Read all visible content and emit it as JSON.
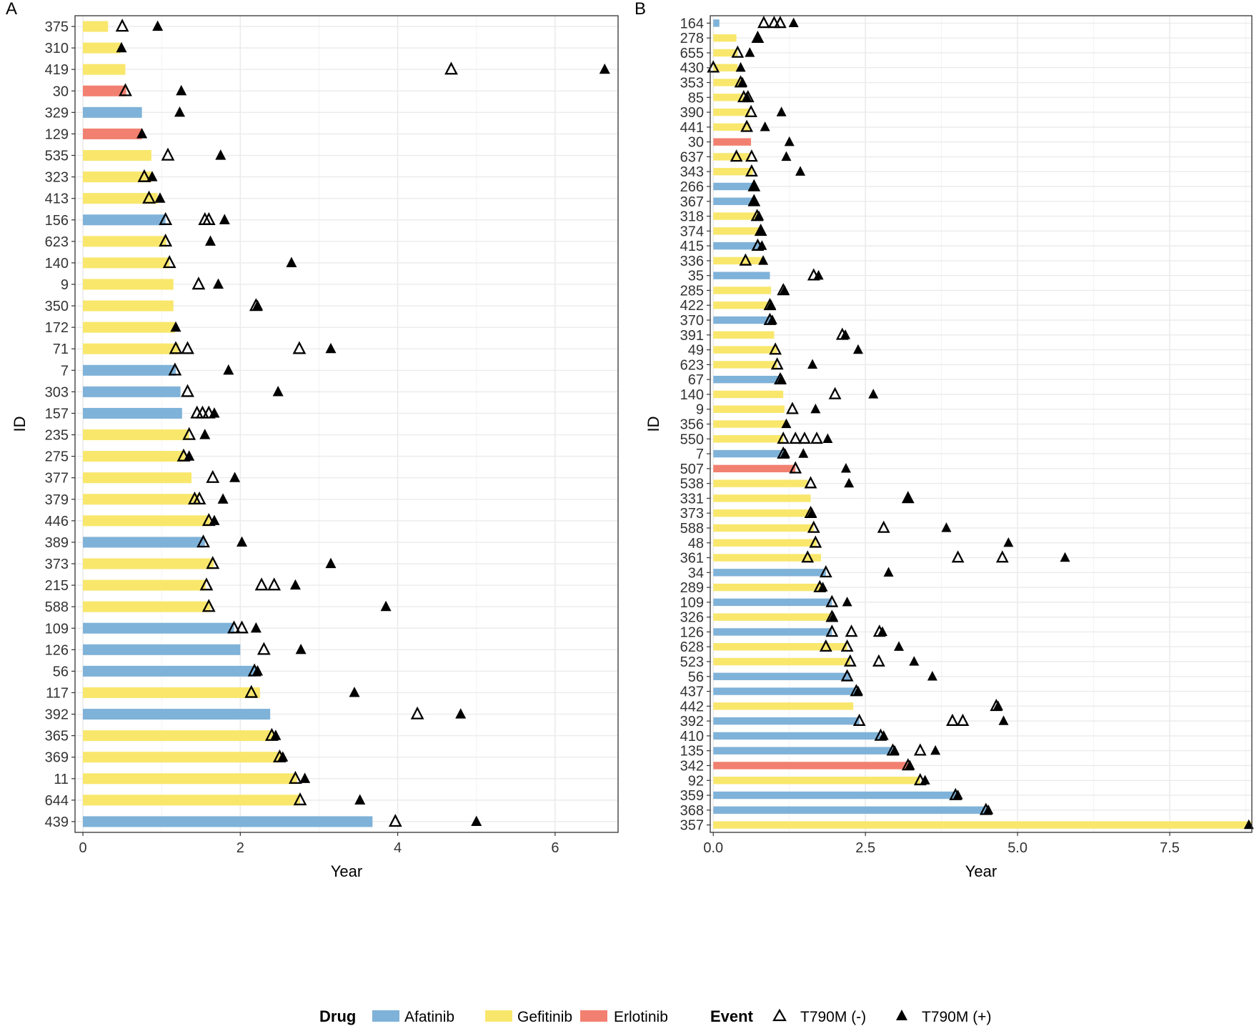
{
  "colors": {
    "Afatinib": "#7fb2d8",
    "Gefitinib": "#f9e76c",
    "Erlotinib": "#f28070",
    "grid": "#ebebeb",
    "frame": "#333333"
  },
  "legend": {
    "drug_title": "Drug",
    "drugs": [
      "Afatinib",
      "Gefitinib",
      "Erlotinib"
    ],
    "event_title": "Event",
    "events": [
      "T790M (-)",
      "T790M (+)"
    ]
  },
  "chart_data": [
    {
      "panel": "A",
      "type": "bar",
      "ylabel": "ID",
      "xlabel": "Year",
      "xlim": [
        -0.1,
        6.8
      ],
      "xticks": [
        0,
        2,
        4,
        6
      ],
      "xtick_labels": [
        "0",
        "2",
        "4",
        "6"
      ],
      "ids": [
        "375",
        "310",
        "419",
        "30",
        "329",
        "129",
        "535",
        "323",
        "413",
        "156",
        "623",
        "140",
        "9",
        "350",
        "172",
        "71",
        "7",
        "303",
        "157",
        "235",
        "275",
        "377",
        "379",
        "446",
        "389",
        "373",
        "215",
        "588",
        "109",
        "126",
        "56",
        "117",
        "392",
        "365",
        "369",
        "11",
        "644",
        "439"
      ],
      "drug": [
        "Gefitinib",
        "Gefitinib",
        "Gefitinib",
        "Erlotinib",
        "Afatinib",
        "Erlotinib",
        "Gefitinib",
        "Gefitinib",
        "Gefitinib",
        "Afatinib",
        "Gefitinib",
        "Gefitinib",
        "Gefitinib",
        "Gefitinib",
        "Gefitinib",
        "Gefitinib",
        "Afatinib",
        "Afatinib",
        "Afatinib",
        "Gefitinib",
        "Gefitinib",
        "Gefitinib",
        "Gefitinib",
        "Gefitinib",
        "Afatinib",
        "Gefitinib",
        "Gefitinib",
        "Gefitinib",
        "Afatinib",
        "Afatinib",
        "Afatinib",
        "Gefitinib",
        "Afatinib",
        "Gefitinib",
        "Gefitinib",
        "Gefitinib",
        "Gefitinib",
        "Afatinib"
      ],
      "values": [
        0.32,
        0.48,
        0.54,
        0.55,
        0.75,
        0.75,
        0.87,
        0.87,
        0.95,
        1.05,
        1.06,
        1.1,
        1.15,
        1.15,
        1.17,
        1.22,
        1.18,
        1.24,
        1.26,
        1.35,
        1.3,
        1.38,
        1.47,
        1.62,
        1.55,
        1.66,
        1.56,
        1.62,
        1.92,
        2.0,
        2.2,
        2.25,
        2.38,
        2.42,
        2.52,
        2.72,
        2.76,
        3.68
      ],
      "neg": [
        [
          0.5
        ],
        [],
        [
          4.68
        ],
        [
          0.54
        ],
        [],
        [],
        [
          1.08
        ],
        [
          0.78
        ],
        [
          0.84
        ],
        [
          1.05,
          1.55,
          1.6
        ],
        [
          1.05
        ],
        [
          1.1
        ],
        [
          1.47
        ],
        [
          2.2
        ],
        [],
        [
          1.18,
          1.33,
          2.75
        ],
        [
          1.17
        ],
        [
          1.33
        ],
        [
          1.45,
          1.52,
          1.6
        ],
        [
          1.35
        ],
        [
          1.28
        ],
        [
          1.65
        ],
        [
          1.42,
          1.48
        ],
        [
          1.6
        ],
        [
          1.53
        ],
        [
          1.65
        ],
        [
          1.57,
          2.27,
          2.43
        ],
        [
          1.6
        ],
        [
          1.92,
          2.02
        ],
        [
          2.3
        ],
        [
          2.18
        ],
        [
          2.14
        ],
        [
          4.25
        ],
        [
          2.4
        ],
        [
          2.5
        ],
        [
          2.7
        ],
        [
          2.76
        ],
        [
          3.97
        ]
      ],
      "pos": [
        [
          0.95
        ],
        [
          0.49
        ],
        [
          6.63
        ],
        [
          1.25
        ],
        [
          1.23
        ],
        [
          0.75
        ],
        [
          1.75
        ],
        [
          0.88
        ],
        [
          0.98
        ],
        [
          1.8
        ],
        [
          1.62
        ],
        [
          2.65
        ],
        [
          1.72
        ],
        [
          2.22
        ],
        [
          1.18
        ],
        [
          3.15
        ],
        [
          1.85
        ],
        [
          2.48
        ],
        [
          1.67
        ],
        [
          1.55
        ],
        [
          1.35
        ],
        [
          1.93
        ],
        [
          1.78
        ],
        [
          1.67
        ],
        [
          2.02
        ],
        [
          3.15
        ],
        [
          2.7
        ],
        [
          3.85
        ],
        [
          2.2
        ],
        [
          2.77
        ],
        [
          2.22
        ],
        [
          3.45
        ],
        [
          4.8
        ],
        [
          2.45
        ],
        [
          2.54
        ],
        [
          2.82
        ],
        [
          3.52
        ],
        [
          5.0
        ]
      ]
    },
    {
      "panel": "B",
      "type": "bar",
      "ylabel": "ID",
      "xlabel": "Year",
      "xlim": [
        -0.05,
        8.85
      ],
      "xticks": [
        0,
        2.5,
        5.0,
        7.5
      ],
      "xtick_labels": [
        "0.0",
        "2.5",
        "5.0",
        "7.5"
      ],
      "ids": [
        "164",
        "278",
        "655",
        "430",
        "353",
        "85",
        "390",
        "441",
        "30",
        "637",
        "343",
        "266",
        "367",
        "318",
        "374",
        "415",
        "336",
        "35",
        "285",
        "422",
        "370",
        "391",
        "49",
        "623",
        "67",
        "140",
        "9",
        "356",
        "550",
        "7",
        "507",
        "538",
        "331",
        "373",
        "588",
        "48",
        "361",
        "34",
        "289",
        "109",
        "326",
        "126",
        "628",
        "523",
        "56",
        "437",
        "442",
        "392",
        "410",
        "135",
        "342",
        "92",
        "359",
        "368",
        "357"
      ],
      "drug": [
        "Afatinib",
        "Gefitinib",
        "Gefitinib",
        "Gefitinib",
        "Gefitinib",
        "Gefitinib",
        "Gefitinib",
        "Gefitinib",
        "Erlotinib",
        "Gefitinib",
        "Gefitinib",
        "Afatinib",
        "Afatinib",
        "Gefitinib",
        "Gefitinib",
        "Afatinib",
        "Gefitinib",
        "Afatinib",
        "Gefitinib",
        "Gefitinib",
        "Afatinib",
        "Gefitinib",
        "Gefitinib",
        "Gefitinib",
        "Afatinib",
        "Gefitinib",
        "Gefitinib",
        "Gefitinib",
        "Gefitinib",
        "Afatinib",
        "Erlotinib",
        "Gefitinib",
        "Gefitinib",
        "Gefitinib",
        "Gefitinib",
        "Gefitinib",
        "Gefitinib",
        "Afatinib",
        "Gefitinib",
        "Afatinib",
        "Gefitinib",
        "Afatinib",
        "Gefitinib",
        "Gefitinib",
        "Afatinib",
        "Afatinib",
        "Gefitinib",
        "Afatinib",
        "Afatinib",
        "Afatinib",
        "Erlotinib",
        "Gefitinib",
        "Afatinib",
        "Afatinib",
        "Gefitinib"
      ],
      "values": [
        0.1,
        0.38,
        0.4,
        0.4,
        0.45,
        0.5,
        0.6,
        0.6,
        0.62,
        0.6,
        0.65,
        0.67,
        0.67,
        0.72,
        0.78,
        0.8,
        0.82,
        0.93,
        0.95,
        0.95,
        0.95,
        1.0,
        1.05,
        1.05,
        1.1,
        1.15,
        1.17,
        1.2,
        1.15,
        1.17,
        1.35,
        1.55,
        1.6,
        1.6,
        1.65,
        1.7,
        1.77,
        1.85,
        1.8,
        1.95,
        1.95,
        1.95,
        2.2,
        2.25,
        2.25,
        2.35,
        2.3,
        2.4,
        2.75,
        2.95,
        3.2,
        3.4,
        4.0,
        4.5,
        8.85
      ],
      "neg": [
        [
          0.83,
          1.0,
          1.1
        ],
        [
          0.73
        ],
        [
          0.4
        ],
        [
          0.0
        ],
        [
          0.45
        ],
        [
          0.5,
          0.57
        ],
        [
          0.62
        ],
        [
          0.55
        ],
        [],
        [
          0.38,
          0.63
        ],
        [
          0.63
        ],
        [
          0.67
        ],
        [
          0.67
        ],
        [
          0.72
        ],
        [
          0.78
        ],
        [
          0.73
        ],
        [
          0.53
        ],
        [
          1.65
        ],
        [
          1.15
        ],
        [
          0.93
        ],
        [
          0.93
        ],
        [
          2.12
        ],
        [
          1.02
        ],
        [
          1.05
        ],
        [
          1.1
        ],
        [
          2.0
        ],
        [
          1.3
        ],
        [],
        [
          1.15,
          1.35,
          1.5,
          1.7
        ],
        [
          1.15
        ],
        [
          1.35
        ],
        [
          1.6
        ],
        [
          3.2
        ],
        [
          1.6
        ],
        [
          1.65,
          2.8
        ],
        [
          1.68
        ],
        [
          1.55,
          4.02,
          4.75
        ],
        [
          1.85
        ],
        [
          1.75
        ],
        [
          1.95
        ],
        [
          1.95
        ],
        [
          1.95,
          2.27,
          2.73
        ],
        [
          1.85,
          2.2
        ],
        [
          2.25,
          2.72
        ],
        [
          2.2
        ],
        [
          2.35
        ],
        [
          4.65
        ],
        [
          2.4,
          3.93,
          4.1
        ],
        [
          2.75
        ],
        [
          2.95,
          3.4
        ],
        [
          3.2
        ],
        [
          3.4
        ],
        [
          3.98
        ],
        [
          4.48
        ],
        []
      ],
      "pos": [
        [
          1.32
        ],
        [
          0.73
        ],
        [
          0.6
        ],
        [
          0.45
        ],
        [
          0.48
        ],
        [
          0.55
        ],
        [
          1.12
        ],
        [
          0.85
        ],
        [
          1.25
        ],
        [
          1.2
        ],
        [
          1.43
        ],
        [
          0.67
        ],
        [
          0.68
        ],
        [
          0.75
        ],
        [
          0.78
        ],
        [
          0.8
        ],
        [
          0.82
        ],
        [
          1.73
        ],
        [
          1.17
        ],
        [
          0.95
        ],
        [
          0.97
        ],
        [
          2.17
        ],
        [
          2.38
        ],
        [
          1.63
        ],
        [
          1.12
        ],
        [
          2.63
        ],
        [
          1.68
        ],
        [
          1.2
        ],
        [
          1.88
        ],
        [
          1.18,
          1.48
        ],
        [
          2.18
        ],
        [
          2.23
        ],
        [
          3.2
        ],
        [
          1.62
        ],
        [
          3.83
        ],
        [
          4.85
        ],
        [
          5.78
        ],
        [
          2.88
        ],
        [
          1.8
        ],
        [
          2.2
        ],
        [
          1.97
        ],
        [
          2.78
        ],
        [
          3.05
        ],
        [
          3.3
        ],
        [
          3.6
        ],
        [
          2.38
        ],
        [
          4.68
        ],
        [
          4.77
        ],
        [
          2.8
        ],
        [
          2.98,
          3.65
        ],
        [
          3.23
        ],
        [
          3.48
        ],
        [
          4.02
        ],
        [
          4.52
        ],
        [
          8.8
        ]
      ]
    }
  ]
}
